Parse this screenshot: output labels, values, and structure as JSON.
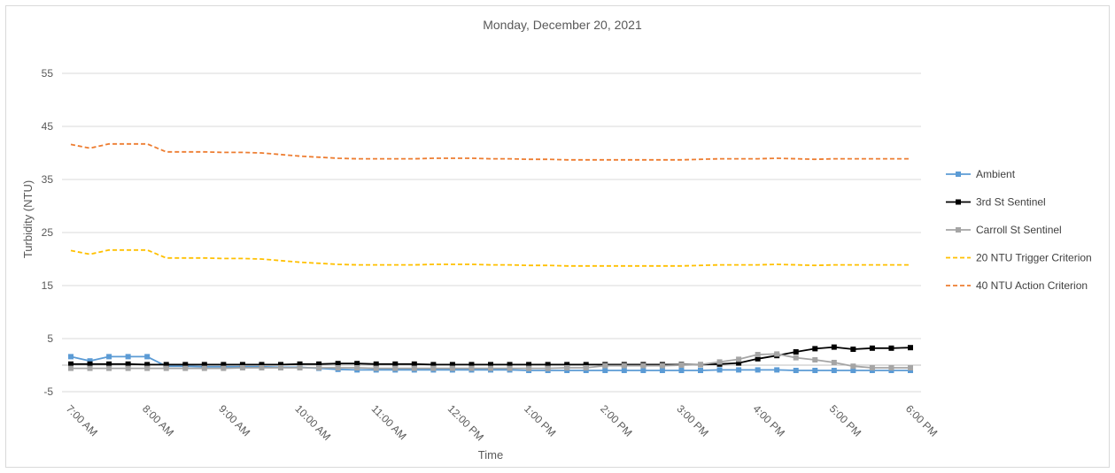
{
  "chart_data": {
    "type": "line",
    "title": "Monday, December 20, 2021",
    "xlabel": "Time",
    "ylabel": "Turbidity (NTU)",
    "ylim": [
      -5,
      60
    ],
    "yticks": [
      -5,
      5,
      15,
      25,
      35,
      45,
      55
    ],
    "grid": true,
    "legend": "right",
    "x_start": "7:00 AM",
    "x_end": "6:00 PM",
    "x_ticks": [
      "7:00 AM",
      "8:00 AM",
      "9:00 AM",
      "10:00 AM",
      "11:00 AM",
      "12:00 PM",
      "1:00 PM",
      "2:00 PM",
      "3:00 PM",
      "4:00 PM",
      "5:00 PM",
      "6:00 PM"
    ],
    "x": [
      "7:00 AM",
      "7:15 AM",
      "7:30 AM",
      "7:45 AM",
      "8:00 AM",
      "8:15 AM",
      "8:30 AM",
      "8:45 AM",
      "9:00 AM",
      "9:15 AM",
      "9:30 AM",
      "9:45 AM",
      "10:00 AM",
      "10:15 AM",
      "10:30 AM",
      "10:45 AM",
      "11:00 AM",
      "11:15 AM",
      "11:30 AM",
      "11:45 AM",
      "12:00 PM",
      "12:15 PM",
      "12:30 PM",
      "12:45 PM",
      "1:00 PM",
      "1:15 PM",
      "1:30 PM",
      "1:45 PM",
      "2:00 PM",
      "2:15 PM",
      "2:30 PM",
      "2:45 PM",
      "3:00 PM",
      "3:15 PM",
      "3:30 PM",
      "3:45 PM",
      "4:00 PM",
      "4:15 PM",
      "4:30 PM",
      "4:45 PM",
      "5:00 PM",
      "5:15 PM",
      "5:30 PM",
      "5:45 PM",
      "6:00 PM"
    ],
    "series": [
      {
        "name": "Ambient",
        "color": "#5b9bd5",
        "style": "solid-marker",
        "values": [
          1.6,
          0.8,
          1.6,
          1.6,
          1.6,
          -0.2,
          -0.2,
          -0.3,
          -0.3,
          -0.3,
          -0.3,
          -0.4,
          -0.4,
          -0.6,
          -0.8,
          -0.9,
          -0.9,
          -0.9,
          -0.9,
          -0.9,
          -0.9,
          -0.9,
          -0.9,
          -0.9,
          -1.0,
          -1.0,
          -1.0,
          -1.0,
          -1.0,
          -1.0,
          -1.0,
          -1.0,
          -1.0,
          -1.0,
          -0.9,
          -0.9,
          -0.9,
          -0.9,
          -1.0,
          -1.0,
          -1.0,
          -1.0,
          -1.0,
          -1.0,
          -1.0
        ]
      },
      {
        "name": "3rd St Sentinel",
        "color": "#000000",
        "style": "solid-marker",
        "values": [
          0.2,
          0.2,
          0.2,
          0.2,
          0.1,
          0.1,
          0.1,
          0.1,
          0.1,
          0.1,
          0.1,
          0.1,
          0.2,
          0.2,
          0.3,
          0.3,
          0.2,
          0.2,
          0.2,
          0.1,
          0.1,
          0.1,
          0.1,
          0.1,
          0.1,
          0.1,
          0.1,
          0.1,
          0.1,
          0.1,
          0.1,
          0.1,
          0.1,
          0.1,
          0.2,
          0.4,
          1.2,
          1.8,
          2.5,
          3.1,
          3.4,
          3.0,
          3.2,
          3.2,
          3.3
        ]
      },
      {
        "name": "Carroll St Sentinel",
        "color": "#a5a5a5",
        "style": "solid-marker",
        "values": [
          -0.6,
          -0.6,
          -0.6,
          -0.6,
          -0.6,
          -0.6,
          -0.6,
          -0.6,
          -0.6,
          -0.5,
          -0.5,
          -0.5,
          -0.5,
          -0.5,
          -0.5,
          -0.5,
          -0.6,
          -0.6,
          -0.6,
          -0.6,
          -0.6,
          -0.6,
          -0.6,
          -0.6,
          -0.6,
          -0.6,
          -0.5,
          -0.5,
          -0.1,
          -0.1,
          -0.1,
          -0.1,
          0.0,
          0.1,
          0.6,
          1.1,
          2.0,
          2.1,
          1.4,
          1.0,
          0.5,
          -0.2,
          -0.5,
          -0.5,
          -0.5
        ]
      },
      {
        "name": "20 NTU Trigger Criterion",
        "color": "#ffc000",
        "style": "dashed",
        "values": [
          21.6,
          20.9,
          21.7,
          21.7,
          21.7,
          20.2,
          20.2,
          20.2,
          20.1,
          20.1,
          20.0,
          19.7,
          19.4,
          19.2,
          19.0,
          18.9,
          18.9,
          18.9,
          18.9,
          19.0,
          19.0,
          19.0,
          18.9,
          18.9,
          18.8,
          18.8,
          18.7,
          18.7,
          18.7,
          18.7,
          18.7,
          18.7,
          18.7,
          18.8,
          18.9,
          18.9,
          18.9,
          19.0,
          18.9,
          18.8,
          18.9,
          18.9,
          18.9,
          18.9,
          18.9
        ]
      },
      {
        "name": "40 NTU Action Criterion",
        "color": "#ed7d31",
        "style": "dashed",
        "values": [
          41.6,
          40.9,
          41.7,
          41.7,
          41.7,
          40.2,
          40.2,
          40.2,
          40.1,
          40.1,
          40.0,
          39.7,
          39.4,
          39.2,
          39.0,
          38.9,
          38.9,
          38.9,
          38.9,
          39.0,
          39.0,
          39.0,
          38.9,
          38.9,
          38.8,
          38.8,
          38.7,
          38.7,
          38.7,
          38.7,
          38.7,
          38.7,
          38.7,
          38.8,
          38.9,
          38.9,
          38.9,
          39.0,
          38.9,
          38.8,
          38.9,
          38.9,
          38.9,
          38.9,
          38.9
        ]
      }
    ]
  }
}
